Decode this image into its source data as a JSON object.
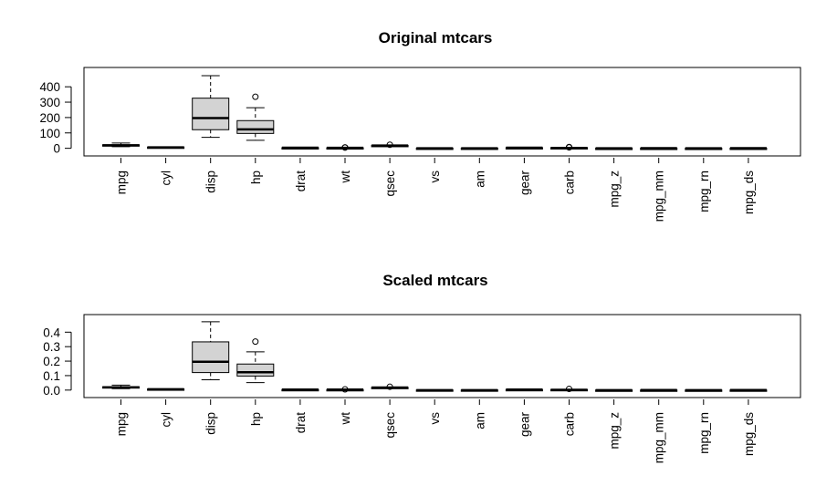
{
  "chart_data": [
    {
      "type": "boxplot",
      "title": "Original mtcars",
      "categories": [
        "mpg",
        "cyl",
        "disp",
        "hp",
        "drat",
        "wt",
        "qsec",
        "vs",
        "am",
        "gear",
        "carb",
        "mpg_z",
        "mpg_mm",
        "mpg_rn",
        "mpg_ds"
      ],
      "yticks": [
        "0",
        "100",
        "200",
        "300",
        "400"
      ],
      "ytick_values": [
        0,
        100,
        200,
        300,
        400
      ],
      "ylim": [
        -20,
        490
      ],
      "boxes": [
        {
          "min": 10.4,
          "q1": 15.4,
          "median": 19.2,
          "q3": 22.8,
          "max": 33.9,
          "outliers": []
        },
        {
          "min": 4,
          "q1": 4,
          "median": 6,
          "q3": 8,
          "max": 8,
          "outliers": []
        },
        {
          "min": 71.1,
          "q1": 120.8,
          "median": 196.3,
          "q3": 326,
          "max": 472,
          "outliers": []
        },
        {
          "min": 52,
          "q1": 96.5,
          "median": 123,
          "q3": 180,
          "max": 264,
          "outliers": [
            335
          ]
        },
        {
          "min": 2.76,
          "q1": 3.08,
          "median": 3.7,
          "q3": 3.92,
          "max": 4.93,
          "outliers": []
        },
        {
          "min": 1.5,
          "q1": 2.6,
          "median": 3.3,
          "q3": 3.6,
          "max": 4.1,
          "outliers": [
            5.3,
            5.4
          ]
        },
        {
          "min": 14.5,
          "q1": 16.9,
          "median": 17.7,
          "q3": 18.9,
          "max": 20.2,
          "outliers": [
            22.9
          ]
        },
        {
          "min": 0,
          "q1": 0,
          "median": 0,
          "q3": 1,
          "max": 1,
          "outliers": []
        },
        {
          "min": 0,
          "q1": 0,
          "median": 0,
          "q3": 1,
          "max": 1,
          "outliers": []
        },
        {
          "min": 3,
          "q1": 3,
          "median": 4,
          "q3": 4,
          "max": 5,
          "outliers": []
        },
        {
          "min": 1,
          "q1": 2,
          "median": 2,
          "q3": 4,
          "max": 4,
          "outliers": [
            6,
            8
          ]
        },
        {
          "min": -1.6,
          "q1": -0.8,
          "median": -0.1,
          "q3": 0.4,
          "max": 2.3,
          "outliers": []
        },
        {
          "min": 0,
          "q1": 0.2,
          "median": 0.4,
          "q3": 0.5,
          "max": 1,
          "outliers": []
        },
        {
          "min": -1.6,
          "q1": -0.8,
          "median": -0.1,
          "q3": 0.4,
          "max": 2.3,
          "outliers": []
        },
        {
          "min": 0.3,
          "q1": 0.45,
          "median": 0.55,
          "q3": 0.7,
          "max": 1,
          "outliers": []
        }
      ]
    },
    {
      "type": "boxplot",
      "title": "Scaled mtcars",
      "categories": [
        "mpg",
        "cyl",
        "disp",
        "hp",
        "drat",
        "wt",
        "qsec",
        "vs",
        "am",
        "gear",
        "carb",
        "mpg_z",
        "mpg_mm",
        "mpg_rn",
        "mpg_ds"
      ],
      "yticks": [
        "0.0",
        "0.1",
        "0.2",
        "0.3",
        "0.4"
      ],
      "ytick_values": [
        0,
        0.1,
        0.2,
        0.3,
        0.4
      ],
      "ylim": [
        -0.02,
        0.49
      ],
      "boxes": [
        {
          "min": 0.01,
          "q1": 0.014,
          "median": 0.019,
          "q3": 0.023,
          "max": 0.034,
          "outliers": []
        },
        {
          "min": 0.004,
          "q1": 0.004,
          "median": 0.006,
          "q3": 0.008,
          "max": 0.008,
          "outliers": []
        },
        {
          "min": 0.071,
          "q1": 0.121,
          "median": 0.196,
          "q3": 0.333,
          "max": 0.472,
          "outliers": []
        },
        {
          "min": 0.052,
          "q1": 0.097,
          "median": 0.123,
          "q3": 0.18,
          "max": 0.264,
          "outliers": [
            0.335
          ]
        },
        {
          "min": 0.0028,
          "q1": 0.0031,
          "median": 0.0037,
          "q3": 0.0039,
          "max": 0.0049,
          "outliers": []
        },
        {
          "min": 0.0015,
          "q1": 0.0026,
          "median": 0.0033,
          "q3": 0.0036,
          "max": 0.0041,
          "outliers": [
            0.0053
          ]
        },
        {
          "min": 0.0145,
          "q1": 0.0169,
          "median": 0.0177,
          "q3": 0.0189,
          "max": 0.0202,
          "outliers": [
            0.0229
          ]
        },
        {
          "min": 0,
          "q1": 0,
          "median": 0,
          "q3": 0.001,
          "max": 0.001,
          "outliers": []
        },
        {
          "min": 0,
          "q1": 0,
          "median": 0,
          "q3": 0.001,
          "max": 0.001,
          "outliers": []
        },
        {
          "min": 0.003,
          "q1": 0.003,
          "median": 0.004,
          "q3": 0.004,
          "max": 0.005,
          "outliers": []
        },
        {
          "min": 0.001,
          "q1": 0.002,
          "median": 0.002,
          "q3": 0.004,
          "max": 0.004,
          "outliers": [
            0.008
          ]
        },
        {
          "min": -0.0016,
          "q1": -0.0008,
          "median": -0.0001,
          "q3": 0.0004,
          "max": 0.0023,
          "outliers": []
        },
        {
          "min": 0,
          "q1": 0.0002,
          "median": 0.0004,
          "q3": 0.0005,
          "max": 0.001,
          "outliers": []
        },
        {
          "min": -0.0016,
          "q1": -0.0008,
          "median": -0.0001,
          "q3": 0.0004,
          "max": 0.0023,
          "outliers": []
        },
        {
          "min": 0.0003,
          "q1": 0.00045,
          "median": 0.00055,
          "q3": 0.0007,
          "max": 0.001,
          "outliers": []
        }
      ]
    }
  ],
  "colors": {
    "box_fill": "#d3d3d3",
    "stroke": "#000000",
    "background": "#ffffff"
  }
}
